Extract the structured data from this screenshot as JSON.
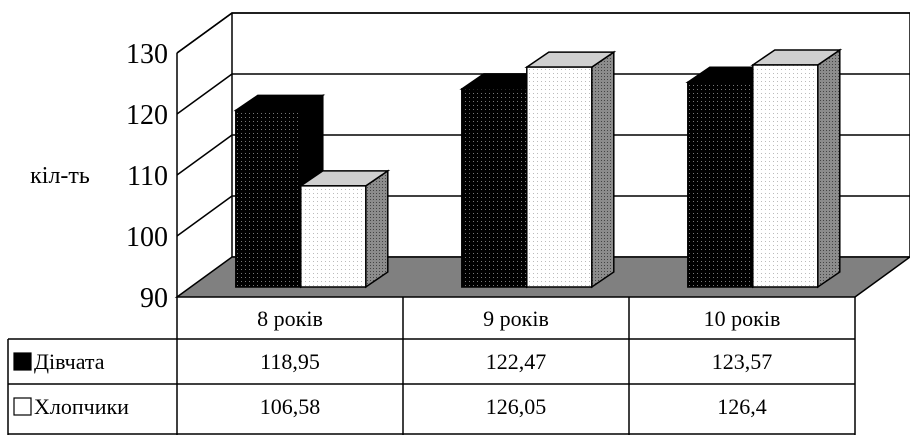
{
  "chart_data": {
    "type": "bar",
    "title": "",
    "xlabel": "",
    "ylabel": "кіл-ть",
    "ylim": [
      90,
      130
    ],
    "yticks": [
      90,
      100,
      110,
      120,
      130
    ],
    "categories": [
      "8 років",
      "9 років",
      "10 років"
    ],
    "series": [
      {
        "name": "Дівчата",
        "values": [
          118.95,
          122.47,
          123.57
        ],
        "value_labels": [
          "118,95",
          "122,47",
          "123,57"
        ],
        "color": "#111111"
      },
      {
        "name": "Хлопчики",
        "values": [
          106.58,
          126.05,
          126.4
        ],
        "value_labels": [
          "106,58",
          "126,05",
          "126,4"
        ],
        "color": "#f7f7f7"
      }
    ],
    "grid": true,
    "legend": "data-table",
    "floor_color": "#808080"
  }
}
